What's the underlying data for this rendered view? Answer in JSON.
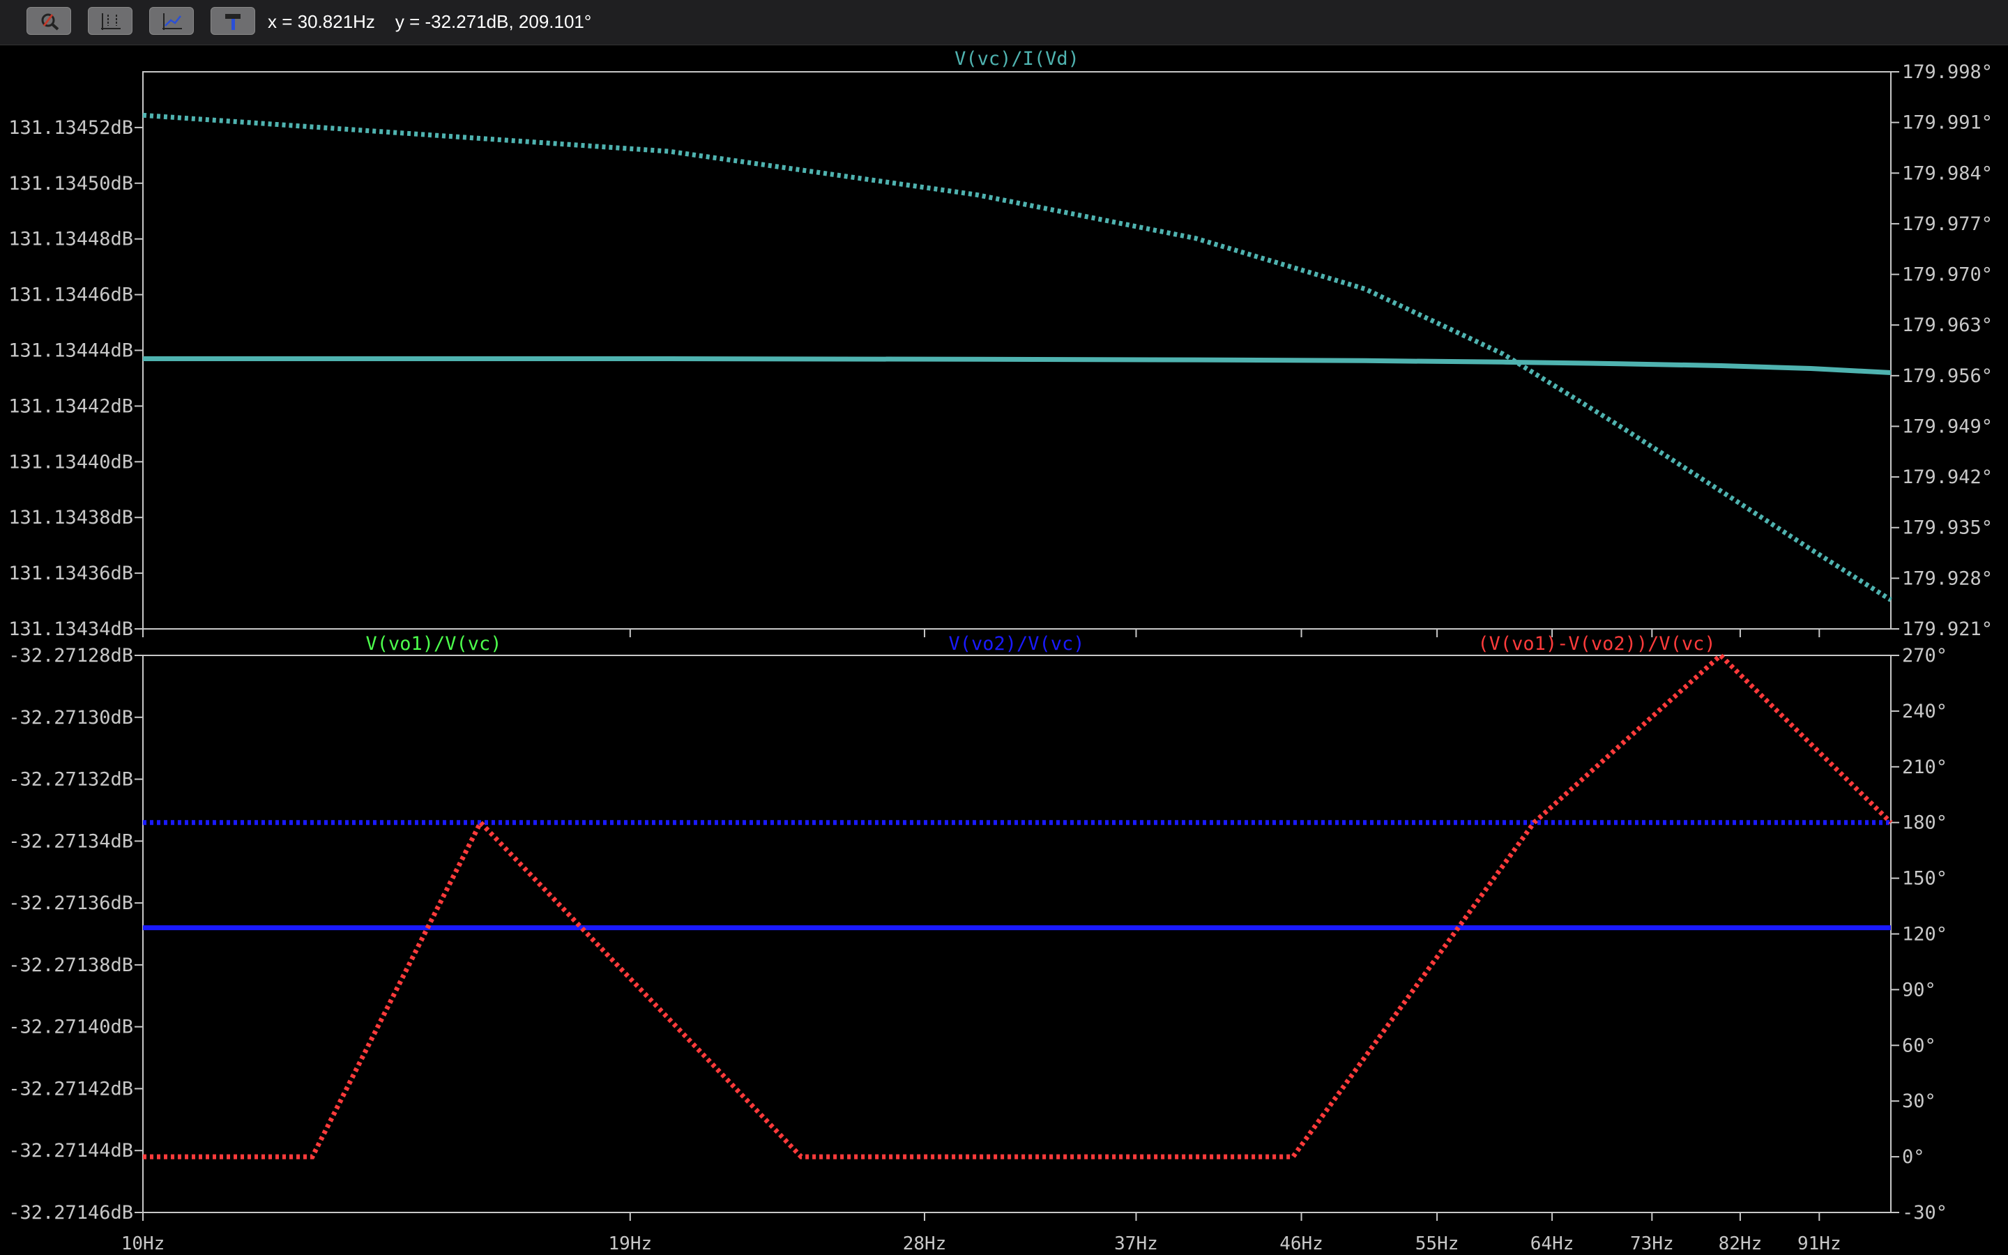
{
  "toolbar": {
    "buttons": [
      {
        "icon": "zoom-icon"
      },
      {
        "icon": "autorange-icon"
      },
      {
        "icon": "pan-icon"
      },
      {
        "icon": "hammer-icon"
      }
    ],
    "cursor_x": "x = 30.821Hz",
    "cursor_y": "y = -32.271dB, 209.101°"
  },
  "colors": {
    "background": "#000000",
    "frame": "#c8c8c8",
    "axis_text": "#c8c8c8",
    "trace_top": "#4fb3b0",
    "trace_vo1": "#4cff4c",
    "trace_vo2": "#1a1aff",
    "trace_diff": "#ff3b3b"
  },
  "chart_data": [
    {
      "type": "line",
      "title": "V(vc)/I(Vd)",
      "x_ticks": [
        "10Hz",
        "19Hz",
        "28Hz",
        "37Hz",
        "46Hz",
        "55Hz",
        "64Hz",
        "73Hz",
        "82Hz",
        "91Hz"
      ],
      "x_tick_values": [
        10,
        19,
        28,
        37,
        46,
        55,
        64,
        73,
        82,
        91
      ],
      "xlim": [
        10,
        100
      ],
      "x_scale": "log",
      "left_axis": {
        "unit": "dB",
        "ticks": [
          "131.13452dB",
          "131.13450dB",
          "131.13448dB",
          "131.13446dB",
          "131.13444dB",
          "131.13442dB",
          "131.13440dB",
          "131.13438dB",
          "131.13436dB",
          "131.13434dB"
        ],
        "ylim": [
          131.13434,
          131.13454
        ]
      },
      "right_axis": {
        "unit": "°",
        "ticks": [
          "179.998°",
          "179.991°",
          "179.984°",
          "179.977°",
          "179.970°",
          "179.963°",
          "179.956°",
          "179.949°",
          "179.942°",
          "179.935°",
          "179.928°",
          "179.921°"
        ],
        "ylim": [
          179.921,
          179.998
        ]
      },
      "series": [
        {
          "name": "V(vc)/I(Vd)",
          "color": "#4fb3b0",
          "style": "solid",
          "axis": "left",
          "x": [
            10,
            20,
            30,
            40,
            50,
            60,
            70,
            80,
            90,
            100
          ],
          "y": [
            131.134437,
            131.134437,
            131.1344368,
            131.1344366,
            131.1344363,
            131.1344358,
            131.1344352,
            131.1344345,
            131.1344335,
            131.134432
          ]
        },
        {
          "name": "V(vc)/I(Vd)",
          "color": "#4fb3b0",
          "style": "dotted",
          "axis": "right",
          "x": [
            10,
            20,
            30,
            40,
            50,
            60,
            70,
            80,
            90,
            100
          ],
          "y": [
            179.992,
            179.987,
            179.981,
            179.975,
            179.968,
            179.959,
            179.949,
            179.94,
            179.932,
            179.925
          ]
        }
      ]
    },
    {
      "type": "line",
      "x_ticks": [
        "10Hz",
        "19Hz",
        "28Hz",
        "37Hz",
        "46Hz",
        "55Hz",
        "64Hz",
        "73Hz",
        "82Hz",
        "91Hz"
      ],
      "x_tick_values": [
        10,
        19,
        28,
        37,
        46,
        55,
        64,
        73,
        82,
        91
      ],
      "xlim": [
        10,
        100
      ],
      "x_scale": "log",
      "legend": [
        "V(vo1)/V(vc)",
        "V(vo2)/V(vc)",
        "(V(vo1)-V(vo2))/V(vc)"
      ],
      "left_axis": {
        "unit": "dB",
        "ticks": [
          "-32.27128dB",
          "-32.27130dB",
          "-32.27132dB",
          "-32.27134dB",
          "-32.27136dB",
          "-32.27138dB",
          "-32.27140dB",
          "-32.27142dB",
          "-32.27144dB",
          "-32.27146dB"
        ],
        "ylim": [
          -32.27146,
          -32.27128
        ]
      },
      "right_axis": {
        "unit": "°",
        "ticks": [
          "270°",
          "240°",
          "210°",
          "180°",
          "150°",
          "120°",
          "90°",
          "60°",
          "30°",
          "0°",
          "-30°"
        ],
        "ylim": [
          -30,
          270
        ]
      },
      "series": [
        {
          "name": "V(vo2)/V(vc)",
          "color": "#1a1aff",
          "style": "solid",
          "axis": "left",
          "x": [
            10,
            100
          ],
          "y": [
            -32.271368,
            -32.271368
          ]
        },
        {
          "name": "V(vo2)/V(vc)",
          "color": "#1a1aff",
          "style": "dotted",
          "axis": "right",
          "x": [
            10,
            100
          ],
          "y": [
            180,
            180
          ]
        },
        {
          "name": "(V(vo1)-V(vo2))/V(vc)",
          "color": "#ff3b3b",
          "style": "dotted",
          "axis": "right",
          "x": [
            10,
            12.5,
            15.6,
            23.8,
            38.5,
            45.5,
            62.5,
            79.9,
            100
          ],
          "y": [
            0,
            0,
            180,
            0,
            0,
            0,
            180,
            270,
            180
          ]
        }
      ]
    }
  ]
}
